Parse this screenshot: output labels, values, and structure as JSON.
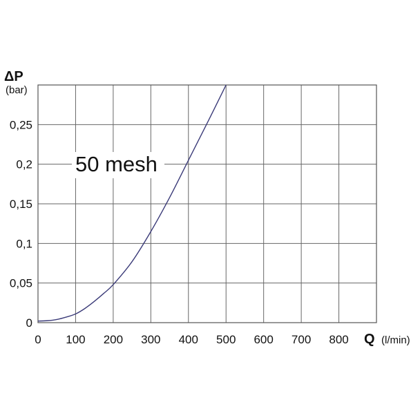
{
  "chart_data": {
    "type": "line",
    "title": "",
    "ylabel_symbol": "ΔP",
    "ylabel_unit": "(bar)",
    "xlabel_symbol": "Q",
    "xlabel_unit": "(l/min)",
    "xlim": [
      0,
      900
    ],
    "ylim": [
      0,
      0.3
    ],
    "x_ticks": [
      0,
      100,
      200,
      300,
      400,
      500,
      600,
      700,
      800
    ],
    "x_tick_labels": [
      "0",
      "100",
      "200",
      "300",
      "400",
      "500",
      "600",
      "700",
      "800"
    ],
    "y_ticks": [
      0,
      0.05,
      0.1,
      0.15,
      0.2,
      0.25
    ],
    "y_tick_labels": [
      "0",
      "0,05",
      "0,1",
      "0,15",
      "0,2",
      "0,25"
    ],
    "grid": true,
    "annotation": "50 mesh",
    "series": [
      {
        "name": "",
        "color": "#3a3a78",
        "x": [
          0,
          25,
          50,
          75,
          100,
          125,
          150,
          175,
          200,
          250,
          300,
          350,
          400,
          450,
          500
        ],
        "y": [
          0.002,
          0.0025,
          0.004,
          0.007,
          0.011,
          0.018,
          0.027,
          0.037,
          0.048,
          0.077,
          0.115,
          0.158,
          0.205,
          0.252,
          0.3
        ]
      }
    ]
  }
}
